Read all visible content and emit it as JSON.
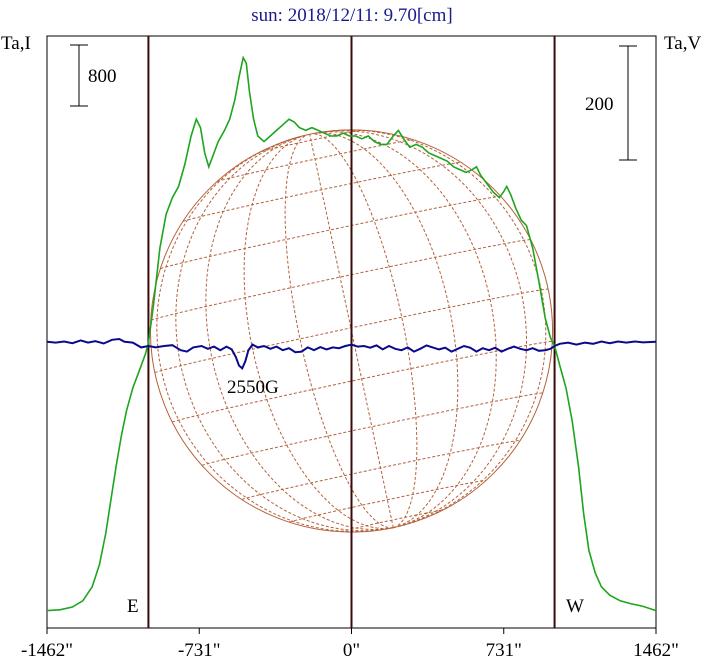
{
  "chart_data": {
    "type": "line",
    "title": "sun: 2018/12/11: 9.70[cm]",
    "left_axis_label": "Ta,I",
    "right_axis_label": "Ta,V",
    "x_ticks": [
      {
        "value": -1462,
        "label": "-1462\""
      },
      {
        "value": -731,
        "label": "-731\""
      },
      {
        "value": 0,
        "label": "0\""
      },
      {
        "value": 731,
        "label": "731\""
      },
      {
        "value": 1462,
        "label": "1462\""
      }
    ],
    "xlim": [
      -1462,
      1462
    ],
    "limb_markers": [
      {
        "x": -975,
        "label": "E"
      },
      {
        "x": 975,
        "label": "W"
      }
    ],
    "scale_bars": [
      {
        "label": "800",
        "axis": "left"
      },
      {
        "label": "200",
        "axis": "right"
      }
    ],
    "annotations": [
      {
        "text": "2550G",
        "x": -500
      }
    ],
    "series": [
      {
        "key": "I",
        "color": "#1ea51e",
        "points": [
          [
            -1462,
            0.005
          ],
          [
            -1400,
            0.008
          ],
          [
            -1340,
            0.018
          ],
          [
            -1290,
            0.04
          ],
          [
            -1245,
            0.09
          ],
          [
            -1210,
            0.17
          ],
          [
            -1180,
            0.28
          ],
          [
            -1155,
            0.4
          ],
          [
            -1130,
            0.52
          ],
          [
            -1105,
            0.63
          ],
          [
            -1080,
            0.72
          ],
          [
            -1050,
            0.8
          ],
          [
            -1020,
            0.86
          ],
          [
            -990,
            0.92
          ],
          [
            -975,
            0.96
          ],
          [
            -950,
            1.1
          ],
          [
            -920,
            1.3
          ],
          [
            -890,
            1.42
          ],
          [
            -860,
            1.48
          ],
          [
            -830,
            1.52
          ],
          [
            -800,
            1.6
          ],
          [
            -770,
            1.7
          ],
          [
            -745,
            1.76
          ],
          [
            -725,
            1.73
          ],
          [
            -705,
            1.64
          ],
          [
            -685,
            1.59
          ],
          [
            -665,
            1.63
          ],
          [
            -640,
            1.68
          ],
          [
            -610,
            1.72
          ],
          [
            -585,
            1.76
          ],
          [
            -560,
            1.83
          ],
          [
            -540,
            1.91
          ],
          [
            -520,
            1.98
          ],
          [
            -505,
            1.96
          ],
          [
            -490,
            1.86
          ],
          [
            -470,
            1.76
          ],
          [
            -450,
            1.7
          ],
          [
            -420,
            1.68
          ],
          [
            -390,
            1.7
          ],
          [
            -360,
            1.72
          ],
          [
            -330,
            1.74
          ],
          [
            -300,
            1.76
          ],
          [
            -275,
            1.75
          ],
          [
            -250,
            1.73
          ],
          [
            -220,
            1.72
          ],
          [
            -190,
            1.73
          ],
          [
            -160,
            1.72
          ],
          [
            -130,
            1.71
          ],
          [
            -100,
            1.7
          ],
          [
            -70,
            1.7
          ],
          [
            -40,
            1.71
          ],
          [
            -10,
            1.7
          ],
          [
            20,
            1.7
          ],
          [
            50,
            1.69
          ],
          [
            80,
            1.7
          ],
          [
            110,
            1.68
          ],
          [
            140,
            1.67
          ],
          [
            170,
            1.67
          ],
          [
            200,
            1.7
          ],
          [
            225,
            1.72
          ],
          [
            250,
            1.69
          ],
          [
            280,
            1.66
          ],
          [
            310,
            1.67
          ],
          [
            340,
            1.66
          ],
          [
            370,
            1.64
          ],
          [
            400,
            1.63
          ],
          [
            430,
            1.62
          ],
          [
            460,
            1.61
          ],
          [
            490,
            1.59
          ],
          [
            520,
            1.58
          ],
          [
            550,
            1.57
          ],
          [
            580,
            1.58
          ],
          [
            600,
            1.59
          ],
          [
            620,
            1.56
          ],
          [
            650,
            1.53
          ],
          [
            680,
            1.5
          ],
          [
            710,
            1.48
          ],
          [
            730,
            1.5
          ],
          [
            745,
            1.52
          ],
          [
            765,
            1.49
          ],
          [
            790,
            1.44
          ],
          [
            815,
            1.4
          ],
          [
            840,
            1.38
          ],
          [
            870,
            1.3
          ],
          [
            900,
            1.18
          ],
          [
            930,
            1.05
          ],
          [
            955,
            0.98
          ],
          [
            975,
            0.95
          ],
          [
            1000,
            0.88
          ],
          [
            1030,
            0.8
          ],
          [
            1060,
            0.68
          ],
          [
            1090,
            0.52
          ],
          [
            1115,
            0.35
          ],
          [
            1140,
            0.22
          ],
          [
            1170,
            0.14
          ],
          [
            1200,
            0.09
          ],
          [
            1240,
            0.06
          ],
          [
            1290,
            0.04
          ],
          [
            1340,
            0.03
          ],
          [
            1400,
            0.02
          ],
          [
            1462,
            0.005
          ]
        ]
      },
      {
        "key": "V",
        "color": "#0a0a8c",
        "points": [
          [
            -1462,
            0.965
          ],
          [
            -1420,
            0.962
          ],
          [
            -1380,
            0.966
          ],
          [
            -1340,
            0.96
          ],
          [
            -1300,
            0.97
          ],
          [
            -1265,
            0.962
          ],
          [
            -1230,
            0.967
          ],
          [
            -1190,
            0.959
          ],
          [
            -1150,
            0.972
          ],
          [
            -1115,
            0.975
          ],
          [
            -1090,
            0.965
          ],
          [
            -1050,
            0.962
          ],
          [
            -1010,
            0.945
          ],
          [
            -975,
            0.95
          ],
          [
            -940,
            0.945
          ],
          [
            -900,
            0.95
          ],
          [
            -860,
            0.953
          ],
          [
            -820,
            0.935
          ],
          [
            -790,
            0.93
          ],
          [
            -760,
            0.945
          ],
          [
            -720,
            0.95
          ],
          [
            -690,
            0.94
          ],
          [
            -660,
            0.948
          ],
          [
            -630,
            0.935
          ],
          [
            -600,
            0.948
          ],
          [
            -575,
            0.938
          ],
          [
            -555,
            0.91
          ],
          [
            -540,
            0.88
          ],
          [
            -525,
            0.87
          ],
          [
            -510,
            0.895
          ],
          [
            -495,
            0.935
          ],
          [
            -475,
            0.955
          ],
          [
            -450,
            0.945
          ],
          [
            -420,
            0.95
          ],
          [
            -390,
            0.94
          ],
          [
            -360,
            0.948
          ],
          [
            -330,
            0.935
          ],
          [
            -300,
            0.942
          ],
          [
            -270,
            0.928
          ],
          [
            -240,
            0.93
          ],
          [
            -210,
            0.945
          ],
          [
            -180,
            0.935
          ],
          [
            -150,
            0.946
          ],
          [
            -120,
            0.938
          ],
          [
            -90,
            0.945
          ],
          [
            -60,
            0.942
          ],
          [
            -30,
            0.95
          ],
          [
            0,
            0.955
          ],
          [
            30,
            0.948
          ],
          [
            60,
            0.95
          ],
          [
            90,
            0.944
          ],
          [
            120,
            0.952
          ],
          [
            150,
            0.938
          ],
          [
            180,
            0.95
          ],
          [
            210,
            0.94
          ],
          [
            240,
            0.935
          ],
          [
            270,
            0.945
          ],
          [
            300,
            0.93
          ],
          [
            330,
            0.94
          ],
          [
            360,
            0.952
          ],
          [
            390,
            0.945
          ],
          [
            420,
            0.938
          ],
          [
            450,
            0.944
          ],
          [
            480,
            0.93
          ],
          [
            510,
            0.94
          ],
          [
            540,
            0.95
          ],
          [
            570,
            0.944
          ],
          [
            600,
            0.93
          ],
          [
            630,
            0.942
          ],
          [
            660,
            0.935
          ],
          [
            690,
            0.944
          ],
          [
            720,
            0.93
          ],
          [
            750,
            0.94
          ],
          [
            780,
            0.948
          ],
          [
            810,
            0.94
          ],
          [
            840,
            0.935
          ],
          [
            870,
            0.942
          ],
          [
            900,
            0.933
          ],
          [
            930,
            0.935
          ],
          [
            955,
            0.94
          ],
          [
            975,
            0.95
          ],
          [
            1000,
            0.958
          ],
          [
            1040,
            0.962
          ],
          [
            1080,
            0.955
          ],
          [
            1120,
            0.962
          ],
          [
            1160,
            0.958
          ],
          [
            1200,
            0.966
          ],
          [
            1240,
            0.96
          ],
          [
            1280,
            0.966
          ],
          [
            1320,
            0.962
          ],
          [
            1360,
            0.966
          ],
          [
            1400,
            0.963
          ],
          [
            1462,
            0.965
          ]
        ]
      }
    ]
  }
}
